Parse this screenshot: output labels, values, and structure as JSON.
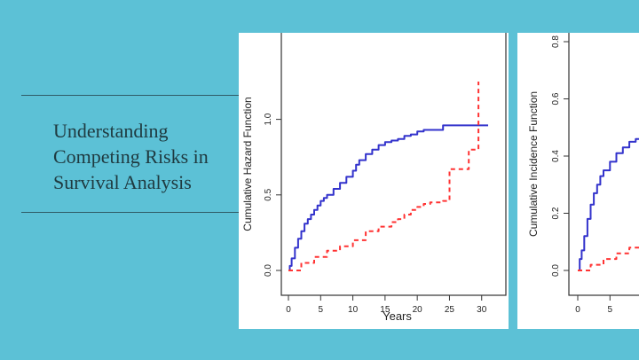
{
  "slide": {
    "title_lines": [
      "Understanding",
      "Competing Risks in",
      "Survival Analysis"
    ]
  },
  "colors": {
    "background": "#5cc1d6",
    "text": "#1f3a40",
    "series_1": "#3333cc",
    "series_2": "#ff3333"
  },
  "chart_data": [
    {
      "type": "line",
      "title": "",
      "xlabel": "Years",
      "ylabel": "Cumulative Hazard Function",
      "xlim": [
        0,
        31
      ],
      "ylim": [
        0,
        1.25
      ],
      "x_ticks": [
        "0",
        "5",
        "10",
        "15",
        "20",
        "25",
        "30"
      ],
      "y_ticks": [
        "0.0",
        "0.5",
        "1.0"
      ],
      "grid": false,
      "legend": "none",
      "series": [
        {
          "color": "#3333cc",
          "style": "solid",
          "points": [
            [
              0,
              0
            ],
            [
              0.2,
              0.03
            ],
            [
              0.5,
              0.08
            ],
            [
              1,
              0.15
            ],
            [
              1.5,
              0.21
            ],
            [
              2,
              0.26
            ],
            [
              2.5,
              0.31
            ],
            [
              3,
              0.34
            ],
            [
              3.5,
              0.37
            ],
            [
              4,
              0.4
            ],
            [
              4.5,
              0.43
            ],
            [
              5,
              0.46
            ],
            [
              5.5,
              0.48
            ],
            [
              6,
              0.5
            ],
            [
              7,
              0.54
            ],
            [
              8,
              0.58
            ],
            [
              9,
              0.62
            ],
            [
              10,
              0.66
            ],
            [
              10.5,
              0.7
            ],
            [
              11,
              0.73
            ],
            [
              12,
              0.77
            ],
            [
              13,
              0.8
            ],
            [
              14,
              0.83
            ],
            [
              15,
              0.85
            ],
            [
              16,
              0.86
            ],
            [
              17,
              0.87
            ],
            [
              18,
              0.89
            ],
            [
              19,
              0.9
            ],
            [
              20,
              0.92
            ],
            [
              21,
              0.93
            ],
            [
              24,
              0.96
            ],
            [
              31,
              0.96
            ]
          ]
        },
        {
          "color": "#ff3333",
          "style": "dashed",
          "points": [
            [
              0,
              0
            ],
            [
              2,
              0.05
            ],
            [
              4,
              0.09
            ],
            [
              6,
              0.13
            ],
            [
              8,
              0.16
            ],
            [
              10,
              0.2
            ],
            [
              12,
              0.26
            ],
            [
              14,
              0.29
            ],
            [
              16,
              0.32
            ],
            [
              17,
              0.34
            ],
            [
              18,
              0.37
            ],
            [
              19,
              0.4
            ],
            [
              20,
              0.42
            ],
            [
              21,
              0.44
            ],
            [
              22,
              0.45
            ],
            [
              24,
              0.46
            ],
            [
              25,
              0.46
            ],
            [
              25,
              0.67
            ],
            [
              27,
              0.67
            ],
            [
              28,
              0.8
            ],
            [
              29.5,
              0.8
            ],
            [
              29.5,
              1.25
            ]
          ]
        }
      ]
    },
    {
      "type": "line",
      "title": "",
      "xlabel": "",
      "ylabel": "Cumulative Incidence Function",
      "xlim": [
        0,
        31
      ],
      "ylim": [
        0,
        0.8
      ],
      "x_ticks": [
        "0",
        "5"
      ],
      "y_ticks": [
        "0.0",
        "0.2",
        "0.4",
        "0.6",
        "0.8"
      ],
      "grid": false,
      "legend": "none",
      "series": [
        {
          "color": "#3333cc",
          "style": "solid",
          "points": [
            [
              0,
              0
            ],
            [
              0.3,
              0.04
            ],
            [
              0.6,
              0.07
            ],
            [
              1,
              0.12
            ],
            [
              1.5,
              0.18
            ],
            [
              2,
              0.23
            ],
            [
              2.5,
              0.27
            ],
            [
              3,
              0.3
            ],
            [
              3.5,
              0.33
            ],
            [
              4,
              0.35
            ],
            [
              5,
              0.38
            ],
            [
              6,
              0.41
            ],
            [
              7,
              0.43
            ],
            [
              8,
              0.45
            ],
            [
              9,
              0.46
            ],
            [
              12,
              0.49
            ]
          ]
        },
        {
          "color": "#ff3333",
          "style": "dashed",
          "points": [
            [
              0,
              0
            ],
            [
              2,
              0.02
            ],
            [
              4,
              0.04
            ],
            [
              6,
              0.06
            ],
            [
              8,
              0.08
            ],
            [
              10,
              0.1
            ]
          ]
        }
      ]
    }
  ]
}
